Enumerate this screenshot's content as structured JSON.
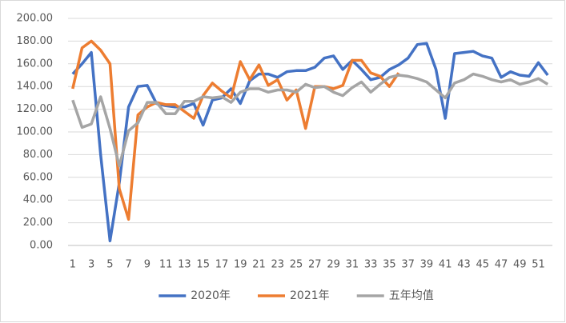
{
  "chart_data": {
    "type": "line",
    "categories": [
      "1",
      null,
      "3",
      null,
      "5",
      null,
      "7",
      null,
      "9",
      null,
      "11",
      null,
      "13",
      null,
      "15",
      null,
      "17",
      null,
      "19",
      null,
      "21",
      null,
      "23",
      null,
      "25",
      null,
      "27",
      null,
      "29",
      null,
      "31",
      null,
      "33",
      null,
      "35",
      null,
      "37",
      null,
      "39",
      null,
      "41",
      null,
      "43",
      null,
      "45",
      null,
      "47",
      null,
      "49",
      null,
      "51",
      null
    ],
    "series": [
      {
        "name": "2020年",
        "color": "#4472c4",
        "values": [
          151,
          160,
          170,
          80,
          4,
          55,
          122,
          140,
          141,
          125,
          123,
          122,
          122,
          125,
          106,
          128,
          130,
          138,
          125,
          145,
          151,
          151,
          148,
          153,
          154,
          154,
          157,
          165,
          167,
          155,
          163,
          155,
          146,
          148,
          155,
          159,
          165,
          177,
          178,
          155,
          112,
          169,
          170,
          171,
          167,
          165,
          148,
          153,
          150,
          149,
          161,
          150
        ]
      },
      {
        "name": "2021年",
        "color": "#ed7d31",
        "values": [
          138,
          174,
          180,
          172,
          160,
          50,
          23,
          115,
          122,
          126,
          124,
          124,
          118,
          112,
          132,
          143,
          136,
          130,
          162,
          146,
          159,
          141,
          146,
          128,
          137,
          103,
          140,
          140,
          138,
          141,
          163,
          163,
          152,
          149,
          140,
          152,
          null,
          null,
          null,
          null,
          null,
          null,
          null,
          null,
          null,
          null,
          null,
          null,
          null,
          null,
          null,
          null
        ]
      },
      {
        "name": "五年均值",
        "color": "#a5a5a5",
        "values": [
          128,
          104,
          107,
          131,
          103,
          70,
          101,
          108,
          126,
          126,
          116,
          116,
          127,
          127,
          131,
          130,
          131,
          126,
          135,
          138,
          138,
          135,
          137,
          137,
          135,
          142,
          139,
          140,
          135,
          132,
          139,
          144,
          135,
          142,
          148,
          150,
          149,
          147,
          144,
          137,
          130,
          143,
          146,
          151,
          149,
          146,
          144,
          146,
          142,
          144,
          147,
          142
        ]
      }
    ],
    "ylim": [
      0,
      200
    ],
    "yticks": [
      {
        "value": 0,
        "label": "0.00"
      },
      {
        "value": 20,
        "label": "20.00"
      },
      {
        "value": 40,
        "label": "40.00"
      },
      {
        "value": 60,
        "label": "60.00"
      },
      {
        "value": 80,
        "label": "80.00"
      },
      {
        "value": 100,
        "label": "100.00"
      },
      {
        "value": 120,
        "label": "120.00"
      },
      {
        "value": 140,
        "label": "140.00"
      },
      {
        "value": 160,
        "label": "160.00"
      },
      {
        "value": 180,
        "label": "180.00"
      },
      {
        "value": 200,
        "label": "200.00"
      }
    ],
    "grid": true,
    "legend": "bottom"
  }
}
